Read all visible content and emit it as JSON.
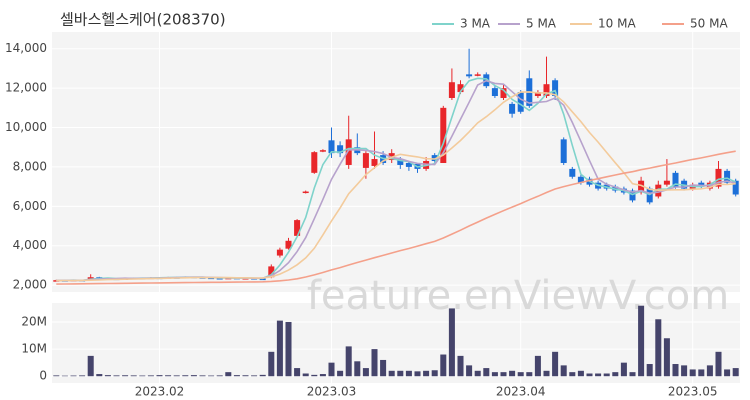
{
  "chart_data": [
    {
      "type": "candlestick",
      "title": "셀바스헬스케어(208370)",
      "annotation": "feature.enViewV.com",
      "up_color": "#e8262a",
      "down_color": "#1c6fd8",
      "grid": true,
      "legend": "top-right",
      "ylim": [
        1650,
        14850
      ],
      "yticks": [
        {
          "value": 2000,
          "label": "2,000"
        },
        {
          "value": 4000,
          "label": "4,000"
        },
        {
          "value": 6000,
          "label": "6,000"
        },
        {
          "value": 8000,
          "label": "8,000"
        },
        {
          "value": 10000,
          "label": "10,000"
        },
        {
          "value": 12000,
          "label": "12,000"
        },
        {
          "value": 14000,
          "label": "14,000"
        }
      ],
      "open": [
        2220,
        2250,
        2230,
        2260,
        2240,
        2400,
        2350,
        2330,
        2320,
        2340,
        2360,
        2350,
        2380,
        2370,
        2400,
        2390,
        2420,
        2400,
        2380,
        2360,
        2340,
        2370,
        2350,
        2360,
        2330,
        2400,
        3500,
        3850,
        4500,
        6700,
        7700,
        8800,
        9350,
        9100,
        8100,
        9000,
        7950,
        8050,
        8600,
        8350,
        8400,
        8200,
        8150,
        7900,
        8600,
        8200,
        11500,
        11800,
        12700,
        12650,
        12700,
        12000,
        11500,
        11200,
        11800,
        12500,
        11600,
        11600,
        12400,
        9400,
        7900,
        7500,
        7400,
        7200,
        7100,
        7000,
        6900,
        6800,
        6700,
        6900,
        6500,
        7100,
        7700,
        7300,
        6900,
        7200,
        6900,
        7000,
        7800,
        7300
      ],
      "high": [
        2280,
        2270,
        2280,
        2280,
        2550,
        2420,
        2370,
        2350,
        2360,
        2380,
        2380,
        2400,
        2400,
        2420,
        2420,
        2440,
        2430,
        2410,
        2390,
        2370,
        2390,
        2380,
        2380,
        2370,
        2350,
        3050,
        3900,
        4400,
        5350,
        6800,
        8800,
        8900,
        10000,
        9300,
        10600,
        9700,
        8800,
        9800,
        8800,
        8900,
        8500,
        8300,
        8200,
        8500,
        8700,
        11100,
        13000,
        12400,
        14000,
        12800,
        12800,
        12100,
        12200,
        11300,
        11900,
        12900,
        11900,
        13600,
        12500,
        9500,
        8000,
        7600,
        7500,
        7300,
        7200,
        7100,
        7000,
        6900,
        7500,
        7000,
        7300,
        8400,
        7800,
        7400,
        7200,
        7300,
        7300,
        8300,
        7900,
        7400
      ],
      "low": [
        2200,
        2210,
        2210,
        2220,
        2230,
        2330,
        2310,
        2300,
        2310,
        2320,
        2330,
        2340,
        2350,
        2360,
        2370,
        2380,
        2380,
        2370,
        2340,
        2320,
        2330,
        2340,
        2340,
        2320,
        2300,
        2350,
        3400,
        3800,
        4450,
        6650,
        7650,
        8750,
        8450,
        8500,
        7900,
        8600,
        7400,
        7900,
        8100,
        8200,
        7900,
        7800,
        7700,
        7800,
        8200,
        8200,
        11400,
        11700,
        12500,
        12600,
        12000,
        11500,
        11400,
        10500,
        10700,
        11000,
        11500,
        11500,
        11400,
        8100,
        7400,
        7100,
        7000,
        6800,
        6800,
        6700,
        6600,
        6200,
        6600,
        6100,
        6400,
        7000,
        6900,
        6800,
        6800,
        6900,
        6800,
        6900,
        7100,
        6500
      ],
      "close": [
        2250,
        2230,
        2260,
        2240,
        2400,
        2350,
        2330,
        2320,
        2340,
        2360,
        2350,
        2380,
        2370,
        2400,
        2390,
        2420,
        2400,
        2380,
        2360,
        2340,
        2370,
        2350,
        2360,
        2330,
        2320,
        2950,
        3800,
        4250,
        5300,
        6750,
        8750,
        8850,
        8700,
        8700,
        9400,
        8700,
        8700,
        8400,
        8200,
        8700,
        8100,
        8000,
        7900,
        8300,
        8300,
        11000,
        12300,
        12200,
        12600,
        12700,
        12100,
        11600,
        12000,
        10700,
        10800,
        11100,
        11800,
        12200,
        11600,
        8200,
        7500,
        7200,
        7100,
        6900,
        6900,
        6800,
        6700,
        6300,
        7300,
        6200,
        7100,
        7300,
        7000,
        6900,
        7100,
        7000,
        7200,
        7900,
        7200,
        6600
      ],
      "series": [
        {
          "name": "3 MA",
          "color": "#7fd3cb",
          "values": [
            2240,
            2240,
            2250,
            2240,
            2300,
            2330,
            2360,
            2330,
            2330,
            2340,
            2350,
            2360,
            2370,
            2380,
            2390,
            2400,
            2400,
            2400,
            2380,
            2360,
            2360,
            2350,
            2360,
            2350,
            2340,
            2530,
            3020,
            3670,
            4450,
            5430,
            6930,
            8120,
            8770,
            8750,
            8930,
            8930,
            8930,
            8600,
            8430,
            8430,
            8330,
            8270,
            8000,
            8070,
            8170,
            9200,
            10530,
            11830,
            12370,
            12500,
            12470,
            12130,
            11900,
            11430,
            11170,
            10870,
            11230,
            11700,
            11870,
            10670,
            9100,
            7630,
            7270,
            7070,
            6970,
            6870,
            6800,
            6600,
            6770,
            6600,
            6870,
            6870,
            7130,
            7070,
            7000,
            7000,
            7100,
            7370,
            7430,
            7230
          ]
        },
        {
          "name": "5 MA",
          "color": "#b7a2cc",
          "values": [
            2240,
            2240,
            2240,
            2240,
            2280,
            2300,
            2320,
            2330,
            2350,
            2340,
            2340,
            2350,
            2360,
            2370,
            2380,
            2390,
            2400,
            2400,
            2390,
            2380,
            2370,
            2360,
            2360,
            2350,
            2350,
            2470,
            2740,
            3140,
            3700,
            4410,
            5370,
            6350,
            7370,
            8140,
            8870,
            8870,
            8840,
            8780,
            8680,
            8480,
            8420,
            8280,
            8180,
            8140,
            8120,
            8720,
            9560,
            10420,
            11280,
            12160,
            12380,
            12240,
            12200,
            11820,
            11440,
            11240,
            11280,
            11320,
            11500,
            11140,
            10260,
            9300,
            8320,
            7380,
            7120,
            6980,
            6840,
            6720,
            6800,
            6660,
            6720,
            6840,
            6980,
            6980,
            7080,
            7060,
            7040,
            7220,
            7280,
            7180
          ]
        },
        {
          "name": "10 MA",
          "color": "#f3cb9c",
          "values": [
            2230,
            2230,
            2235,
            2240,
            2250,
            2260,
            2280,
            2290,
            2300,
            2310,
            2320,
            2330,
            2340,
            2350,
            2360,
            2370,
            2380,
            2380,
            2380,
            2380,
            2380,
            2370,
            2370,
            2360,
            2360,
            2420,
            2560,
            2760,
            3030,
            3380,
            3870,
            4550,
            5260,
            5920,
            6640,
            7120,
            7610,
            7960,
            8300,
            8490,
            8640,
            8570,
            8510,
            8420,
            8400,
            8600,
            8960,
            9340,
            9780,
            10240,
            10550,
            10900,
            11280,
            11560,
            11800,
            11810,
            11760,
            11760,
            11660,
            11300,
            10800,
            10300,
            9750,
            9260,
            8730,
            8210,
            7700,
            7150,
            7060,
            6860,
            6820,
            6830,
            6840,
            6840,
            6870,
            6890,
            6960,
            7120,
            7110,
            7150
          ]
        },
        {
          "name": "50 MA",
          "color": "#f4a08a",
          "values": [
            2050,
            2055,
            2060,
            2065,
            2070,
            2075,
            2080,
            2085,
            2090,
            2095,
            2100,
            2105,
            2110,
            2115,
            2120,
            2125,
            2130,
            2135,
            2140,
            2145,
            2150,
            2155,
            2160,
            2165,
            2170,
            2190,
            2220,
            2260,
            2320,
            2410,
            2520,
            2640,
            2770,
            2890,
            3020,
            3150,
            3270,
            3390,
            3510,
            3630,
            3750,
            3860,
            3980,
            4100,
            4220,
            4390,
            4590,
            4790,
            5000,
            5200,
            5400,
            5590,
            5780,
            5960,
            6140,
            6330,
            6510,
            6700,
            6880,
            7000,
            7110,
            7210,
            7310,
            7400,
            7500,
            7590,
            7680,
            7760,
            7860,
            7940,
            8030,
            8120,
            8200,
            8290,
            8380,
            8460,
            8550,
            8640,
            8720,
            8800
          ]
        }
      ]
    },
    {
      "type": "bar",
      "color": "#45446b",
      "grid": true,
      "categories": [
        null,
        null,
        null,
        null,
        null,
        null,
        null,
        null,
        null,
        null,
        null,
        null,
        "2023.02",
        null,
        null,
        null,
        null,
        null,
        null,
        null,
        null,
        null,
        null,
        null,
        null,
        null,
        null,
        null,
        null,
        null,
        null,
        null,
        "2023.03",
        null,
        null,
        null,
        null,
        null,
        null,
        null,
        null,
        null,
        null,
        null,
        null,
        null,
        null,
        null,
        null,
        null,
        null,
        null,
        null,
        null,
        "2023.04",
        null,
        null,
        null,
        null,
        null,
        null,
        null,
        null,
        null,
        null,
        null,
        null,
        null,
        null,
        null,
        null,
        null,
        null,
        null,
        "2023.05",
        null,
        null,
        null,
        null,
        null
      ],
      "ylim": [
        -2500000,
        27000000
      ],
      "yticks": [
        0,
        {
          "value": 10000000,
          "label": "10M"
        },
        {
          "value": 20000000,
          "label": "20M"
        }
      ],
      "values": [
        300000,
        200000,
        250000,
        300000,
        7500000,
        800000,
        400000,
        300000,
        350000,
        300000,
        250000,
        300000,
        400000,
        350000,
        300000,
        350000,
        400000,
        300000,
        250000,
        300000,
        1500000,
        400000,
        350000,
        300000,
        500000,
        9000000,
        20500000,
        20000000,
        3000000,
        1000000,
        500000,
        800000,
        5000000,
        2000000,
        11000000,
        5500000,
        3000000,
        10000000,
        6000000,
        2000000,
        2000000,
        2000000,
        1800000,
        2000000,
        2200000,
        8000000,
        25000000,
        7500000,
        4000000,
        2000000,
        3000000,
        1500000,
        1500000,
        2000000,
        1500000,
        1500000,
        7500000,
        2000000,
        9000000,
        4000000,
        1500000,
        2000000,
        1000000,
        1000000,
        1000000,
        1500000,
        5000000,
        1500000,
        26000000,
        4500000,
        21000000,
        14000000,
        4500000,
        4000000,
        2500000,
        2500000,
        4000000,
        9000000,
        2500000,
        3000000
      ]
    }
  ]
}
